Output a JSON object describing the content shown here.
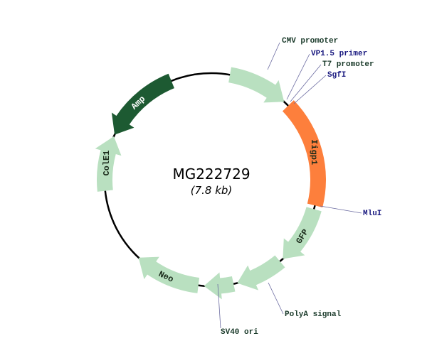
{
  "plasmid": {
    "name": "MG222729",
    "size": "(7.8 kb)"
  },
  "colors": {
    "backbone": "#000000",
    "feature_light_green": "#b9e0c0",
    "feature_dark_green": "#1d5a32",
    "insert_orange": "#fd7f3c",
    "label_dark": "#1a3a2a",
    "label_navy": "#1a1a80",
    "leader_line": "#6a6aa0"
  },
  "features": [
    {
      "name": "CMV promoter",
      "label": "",
      "color": "#b9e0c0",
      "direction": "clockwise"
    },
    {
      "name": "Iigp1",
      "label": "Iigp1",
      "color": "#fd7f3c",
      "direction": "none"
    },
    {
      "name": "GFP",
      "label": "GFP",
      "color": "#b9e0c0",
      "direction": "clockwise"
    },
    {
      "name": "PolyA signal",
      "label": "",
      "color": "#b9e0c0",
      "direction": "clockwise"
    },
    {
      "name": "SV40 ori",
      "label": "",
      "color": "#b9e0c0",
      "direction": "clockwise"
    },
    {
      "name": "Neo",
      "label": "Neo",
      "color": "#b9e0c0",
      "direction": "clockwise"
    },
    {
      "name": "ColE1",
      "label": "ColE1",
      "color": "#b9e0c0",
      "direction": "clockwise"
    },
    {
      "name": "Amp",
      "label": "Amp",
      "color": "#1d5a32",
      "direction": "counterclockwise"
    }
  ],
  "annotations": [
    {
      "text": "CMV promoter",
      "color": "#1a3a2a"
    },
    {
      "text": "VP1.5 primer",
      "color": "#1a1a80"
    },
    {
      "text": "T7 promoter",
      "color": "#1a3a2a"
    },
    {
      "text": "SgfI",
      "color": "#1a1a80"
    },
    {
      "text": "MluI",
      "color": "#1a1a80"
    },
    {
      "text": "PolyA signal",
      "color": "#1a3a2a"
    },
    {
      "text": "SV40 ori",
      "color": "#1a3a2a"
    }
  ]
}
